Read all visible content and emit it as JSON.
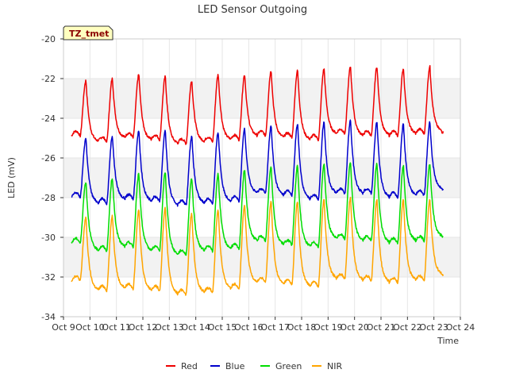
{
  "chart_data": {
    "type": "line",
    "title": "LED Sensor Outgoing",
    "xlabel": "Time",
    "ylabel": "LED (mV)",
    "tag": "TZ_tmet",
    "ylim": [
      -34,
      -20
    ],
    "xlim": [
      0,
      15
    ],
    "yticks": [
      -34,
      -32,
      -30,
      -28,
      -26,
      -24,
      -22,
      -20
    ],
    "xticks": [
      {
        "value": 0,
        "label": "Oct 9"
      },
      {
        "value": 1,
        "label": "Oct 10"
      },
      {
        "value": 2,
        "label": "Oct 11"
      },
      {
        "value": 3,
        "label": "Oct 12"
      },
      {
        "value": 4,
        "label": "Oct 13"
      },
      {
        "value": 5,
        "label": "Oct 14"
      },
      {
        "value": 6,
        "label": "Oct 15"
      },
      {
        "value": 7,
        "label": "Oct 16"
      },
      {
        "value": 8,
        "label": "Oct 17"
      },
      {
        "value": 9,
        "label": "Oct 18"
      },
      {
        "value": 10,
        "label": "Oct 19"
      },
      {
        "value": 11,
        "label": "Oct 20"
      },
      {
        "value": 12,
        "label": "Oct 21"
      },
      {
        "value": 13,
        "label": "Oct 22"
      },
      {
        "value": 14,
        "label": "Oct 23"
      },
      {
        "value": 15,
        "label": "Oct 24"
      }
    ],
    "x_start": 0.3,
    "x_end": 14.35,
    "peak_offset": 0.55,
    "series": [
      {
        "name": "Red",
        "color": "#ee0000",
        "peaks": [
          -22.1,
          -22.0,
          -21.8,
          -21.9,
          -22.1,
          -21.8,
          -21.8,
          -21.6,
          -21.6,
          -21.5,
          -21.4,
          -21.4,
          -21.5,
          -21.4
        ],
        "troughs": [
          -24.9,
          -25.2,
          -25.0,
          -25.1,
          -25.3,
          -25.2,
          -25.1,
          -24.9,
          -25.0,
          -25.1,
          -24.8,
          -24.9,
          -24.9,
          -24.8,
          -24.7
        ]
      },
      {
        "name": "Blue",
        "color": "#0000cc",
        "peaks": [
          -25.0,
          -24.9,
          -24.6,
          -24.6,
          -24.9,
          -24.7,
          -24.5,
          -24.4,
          -24.3,
          -24.2,
          -24.1,
          -24.2,
          -24.3,
          -24.2
        ],
        "troughs": [
          -28.0,
          -28.3,
          -28.1,
          -28.2,
          -28.4,
          -28.3,
          -28.2,
          -27.8,
          -27.9,
          -28.1,
          -27.8,
          -27.8,
          -28.0,
          -27.9,
          -27.6
        ]
      },
      {
        "name": "Green",
        "color": "#00dd00",
        "peaks": [
          -27.2,
          -27.0,
          -26.8,
          -26.7,
          -27.0,
          -26.8,
          -26.6,
          -26.4,
          -26.4,
          -26.3,
          -26.2,
          -26.3,
          -26.4,
          -26.3
        ],
        "troughs": [
          -30.3,
          -30.7,
          -30.5,
          -30.7,
          -30.9,
          -30.7,
          -30.6,
          -30.2,
          -30.4,
          -30.5,
          -30.1,
          -30.2,
          -30.3,
          -30.2,
          -30.0
        ]
      },
      {
        "name": "NIR",
        "color": "#ffa500",
        "peaks": [
          -29.0,
          -28.9,
          -28.6,
          -28.5,
          -28.8,
          -28.6,
          -28.4,
          -28.2,
          -28.2,
          -28.1,
          -28.0,
          -28.1,
          -28.1,
          -28.1
        ],
        "troughs": [
          -32.2,
          -32.7,
          -32.6,
          -32.7,
          -32.9,
          -32.8,
          -32.6,
          -32.3,
          -32.4,
          -32.5,
          -32.1,
          -32.2,
          -32.3,
          -32.2,
          -31.9
        ]
      }
    ]
  }
}
